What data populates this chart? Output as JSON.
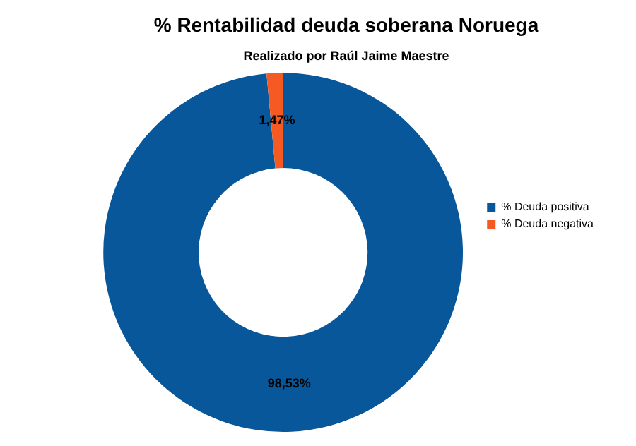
{
  "chart_data": {
    "type": "donut",
    "title": "% Rentabilidad deuda soberana Noruega",
    "subtitle": "Realizado por Raúl Jaime Maestre",
    "categories": [
      "% Deuda positiva",
      "% Deuda negativa"
    ],
    "values": [
      98.53,
      1.47
    ],
    "colors": [
      "#07579a",
      "#f55a22"
    ],
    "value_labels": [
      "98,53%",
      "1,47%"
    ],
    "legend": "right"
  }
}
